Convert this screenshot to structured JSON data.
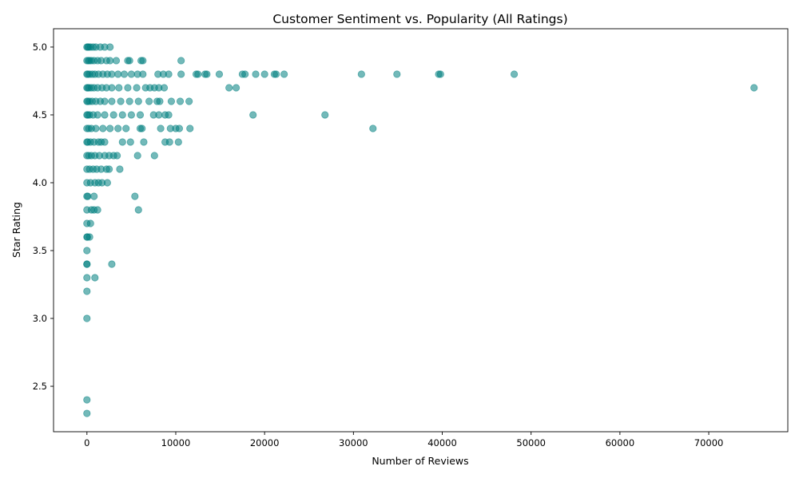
{
  "chart_data": {
    "type": "scatter",
    "title": "Customer Sentiment vs. Popularity (All Ratings)",
    "xlabel": "Number of Reviews",
    "ylabel": "Star Rating",
    "xlim": [
      -3760,
      78900
    ],
    "ylim": [
      2.165,
      5.135
    ],
    "x_ticks": [
      0,
      10000,
      20000,
      30000,
      40000,
      50000,
      60000,
      70000
    ],
    "y_ticks": [
      2.5,
      3.0,
      3.5,
      4.0,
      4.5,
      5.0
    ],
    "grid": false,
    "legend": "none",
    "colors": {
      "points": "#008080",
      "opacity": 0.55
    },
    "series": [
      {
        "x": [
          0,
          100,
          200,
          400,
          700,
          1000,
          1500,
          2000,
          2600,
          0,
          150,
          300,
          500,
          800,
          1200,
          1600,
          2200,
          2600,
          3300,
          4600,
          4800,
          6100,
          6300,
          10600,
          0,
          100,
          300,
          600,
          900,
          1300,
          1800,
          2300,
          2800,
          3500,
          4200,
          5000,
          5700,
          6300,
          8000,
          8600,
          9200,
          10600,
          12300,
          12500,
          13300,
          13500,
          14900,
          17500,
          17800,
          19000,
          20000,
          21100,
          21300,
          22200,
          30900,
          34900,
          39600,
          39800,
          48100,
          0,
          100,
          250,
          500,
          800,
          1200,
          1700,
          2200,
          2800,
          3600,
          4600,
          5600,
          6600,
          7100,
          7600,
          8100,
          8700,
          16000,
          16800,
          75100,
          0,
          100,
          300,
          600,
          1000,
          1500,
          2000,
          2800,
          3800,
          4800,
          5800,
          7000,
          7900,
          8200,
          9500,
          10500,
          11500,
          0,
          100,
          300,
          700,
          1200,
          2000,
          3000,
          4000,
          5000,
          6000,
          7500,
          8100,
          8800,
          9200,
          18700,
          26800,
          0,
          200,
          500,
          1000,
          1800,
          2600,
          3500,
          4400,
          6000,
          6200,
          8300,
          9400,
          10000,
          10400,
          11600,
          32200,
          0,
          100,
          400,
          800,
          1300,
          1600,
          2000,
          4000,
          4900,
          6400,
          8800,
          9300,
          10300,
          0,
          200,
          500,
          900,
          1400,
          2000,
          2500,
          3000,
          3400,
          5700,
          7600,
          0,
          300,
          700,
          1100,
          1600,
          2200,
          2500,
          3700,
          0,
          400,
          900,
          1300,
          1700,
          2300,
          0,
          100,
          800,
          5400,
          0,
          500,
          800,
          1200,
          5800,
          0,
          400,
          0,
          50,
          300,
          0,
          0,
          0,
          2800,
          0,
          900,
          0,
          0,
          0,
          0
        ],
        "y": [
          5.0,
          5.0,
          5.0,
          5.0,
          5.0,
          5.0,
          5.0,
          5.0,
          5.0,
          4.9,
          4.9,
          4.9,
          4.9,
          4.9,
          4.9,
          4.9,
          4.9,
          4.9,
          4.9,
          4.9,
          4.9,
          4.9,
          4.9,
          4.9,
          4.8,
          4.8,
          4.8,
          4.8,
          4.8,
          4.8,
          4.8,
          4.8,
          4.8,
          4.8,
          4.8,
          4.8,
          4.8,
          4.8,
          4.8,
          4.8,
          4.8,
          4.8,
          4.8,
          4.8,
          4.8,
          4.8,
          4.8,
          4.8,
          4.8,
          4.8,
          4.8,
          4.8,
          4.8,
          4.8,
          4.8,
          4.8,
          4.8,
          4.8,
          4.8,
          4.7,
          4.7,
          4.7,
          4.7,
          4.7,
          4.7,
          4.7,
          4.7,
          4.7,
          4.7,
          4.7,
          4.7,
          4.7,
          4.7,
          4.7,
          4.7,
          4.7,
          4.7,
          4.7,
          4.7,
          4.6,
          4.6,
          4.6,
          4.6,
          4.6,
          4.6,
          4.6,
          4.6,
          4.6,
          4.6,
          4.6,
          4.6,
          4.6,
          4.6,
          4.6,
          4.6,
          4.6,
          4.5,
          4.5,
          4.5,
          4.5,
          4.5,
          4.5,
          4.5,
          4.5,
          4.5,
          4.5,
          4.5,
          4.5,
          4.5,
          4.5,
          4.5,
          4.5,
          4.4,
          4.4,
          4.4,
          4.4,
          4.4,
          4.4,
          4.4,
          4.4,
          4.4,
          4.4,
          4.4,
          4.4,
          4.4,
          4.4,
          4.4,
          4.4,
          4.3,
          4.3,
          4.3,
          4.3,
          4.3,
          4.3,
          4.3,
          4.3,
          4.3,
          4.3,
          4.3,
          4.3,
          4.3,
          4.2,
          4.2,
          4.2,
          4.2,
          4.2,
          4.2,
          4.2,
          4.2,
          4.2,
          4.2,
          4.2,
          4.1,
          4.1,
          4.1,
          4.1,
          4.1,
          4.1,
          4.1,
          4.1,
          4.0,
          4.0,
          4.0,
          4.0,
          4.0,
          4.0,
          3.9,
          3.9,
          3.9,
          3.9,
          3.8,
          3.8,
          3.8,
          3.8,
          3.8,
          3.7,
          3.7,
          3.6,
          3.6,
          3.6,
          3.5,
          3.4,
          3.4,
          3.4,
          3.3,
          3.3,
          3.2,
          3.0,
          2.4,
          2.3
        ]
      }
    ]
  }
}
